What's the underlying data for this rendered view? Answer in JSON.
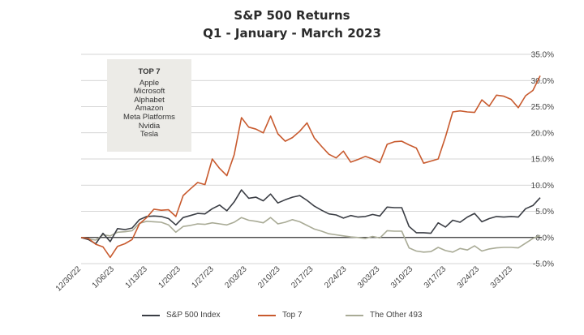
{
  "title": "S&P 500 Returns",
  "subtitle": "Q1 - January - March 2023",
  "box": {
    "heading": "TOP 7",
    "items": [
      "Apple",
      "Microsoft",
      "Alphabet",
      "Amazon",
      "Meta Platforms",
      "Nvidia",
      "Tesla"
    ]
  },
  "legend": {
    "sp500": "S&P 500 Index",
    "top7": "Top 7",
    "other": "The Other 493"
  },
  "colors": {
    "sp500": "#3a3d44",
    "top7": "#c85a2e",
    "other": "#a9ab96",
    "grid": "#c8c8c8",
    "zero": "#333333"
  },
  "chart_data": {
    "type": "line",
    "title": "S&P 500 Returns",
    "subtitle": "Q1 - January - March 2023",
    "ylim": [
      -5,
      35
    ],
    "yticks": [
      "-5.0%",
      "0.0%",
      "5.0%",
      "10.0%",
      "15.0%",
      "20.0%",
      "25.0%",
      "30.0%",
      "35.0%"
    ],
    "ytick_values": [
      -5,
      0,
      5,
      10,
      15,
      20,
      25,
      30,
      35
    ],
    "xticks": [
      "12/30/22",
      "1/06/23",
      "1/13/23",
      "1/20/23",
      "1/27/23",
      "2/03/23",
      "2/10/23",
      "2/17/23",
      "2/24/23",
      "3/03/23",
      "3/10/23",
      "3/17/23",
      "3/24/23",
      "3/31/23"
    ],
    "grid": true,
    "legend_position": "bottom",
    "series": [
      {
        "name": "S&P 500 Index",
        "values": [
          0,
          -0.4,
          -1.2,
          0.8,
          -0.8,
          1.7,
          1.5,
          1.8,
          3.4,
          4.0,
          4.1,
          4.0,
          3.6,
          2.4,
          3.8,
          4.2,
          4.6,
          4.5,
          5.5,
          6.2,
          5.1,
          6.8,
          9.1,
          7.5,
          7.7,
          7.0,
          8.3,
          6.6,
          7.2,
          7.7,
          8.0,
          7.1,
          6.0,
          5.2,
          4.5,
          4.3,
          3.7,
          4.2,
          3.9,
          4.0,
          4.4,
          4.1,
          5.8,
          5.7,
          5.7,
          2.1,
          0.9,
          0.9,
          0.8,
          2.8,
          2.0,
          3.3,
          2.9,
          3.9,
          4.6,
          3.0,
          3.6,
          4.0,
          3.9,
          4.0,
          3.9,
          5.5,
          6.1,
          7.6
        ]
      },
      {
        "name": "Top 7",
        "values": [
          0,
          -0.2,
          -1.3,
          -1.8,
          -3.8,
          -1.7,
          -1.2,
          -0.4,
          2.6,
          3.8,
          5.4,
          5.2,
          5.3,
          4.0,
          8.0,
          9.3,
          10.5,
          10.1,
          15.0,
          13.2,
          11.8,
          15.8,
          22.9,
          21.1,
          20.7,
          20.0,
          23.2,
          19.8,
          18.4,
          19.1,
          20.3,
          21.9,
          19.0,
          17.4,
          15.9,
          15.2,
          16.5,
          14.4,
          14.9,
          15.5,
          15.0,
          14.3,
          17.8,
          18.3,
          18.4,
          17.7,
          17.1,
          14.2,
          14.6,
          15.0,
          19.2,
          24.0,
          24.2,
          24.0,
          23.9,
          26.3,
          25.1,
          27.2,
          27.0,
          26.4,
          24.8,
          27.1,
          28.1,
          30.9
        ]
      },
      {
        "name": "The Other 493",
        "values": [
          0,
          -0.3,
          -0.5,
          0.5,
          0.3,
          1.0,
          1.1,
          1.3,
          2.7,
          3.1,
          3.0,
          2.9,
          2.4,
          1.0,
          2.1,
          2.3,
          2.6,
          2.5,
          2.8,
          2.6,
          2.4,
          2.9,
          3.8,
          3.3,
          3.1,
          2.8,
          3.8,
          2.6,
          2.9,
          3.4,
          3.0,
          2.3,
          1.6,
          1.2,
          0.7,
          0.5,
          0.3,
          0.1,
          0.0,
          -0.2,
          0.2,
          -0.1,
          1.3,
          1.2,
          1.2,
          -2.0,
          -2.6,
          -2.8,
          -2.7,
          -1.9,
          -2.5,
          -2.8,
          -2.1,
          -2.4,
          -1.6,
          -2.6,
          -2.2,
          -2.0,
          -1.9,
          -1.9,
          -2.0,
          -1.1,
          -0.2,
          0.4
        ]
      }
    ]
  }
}
